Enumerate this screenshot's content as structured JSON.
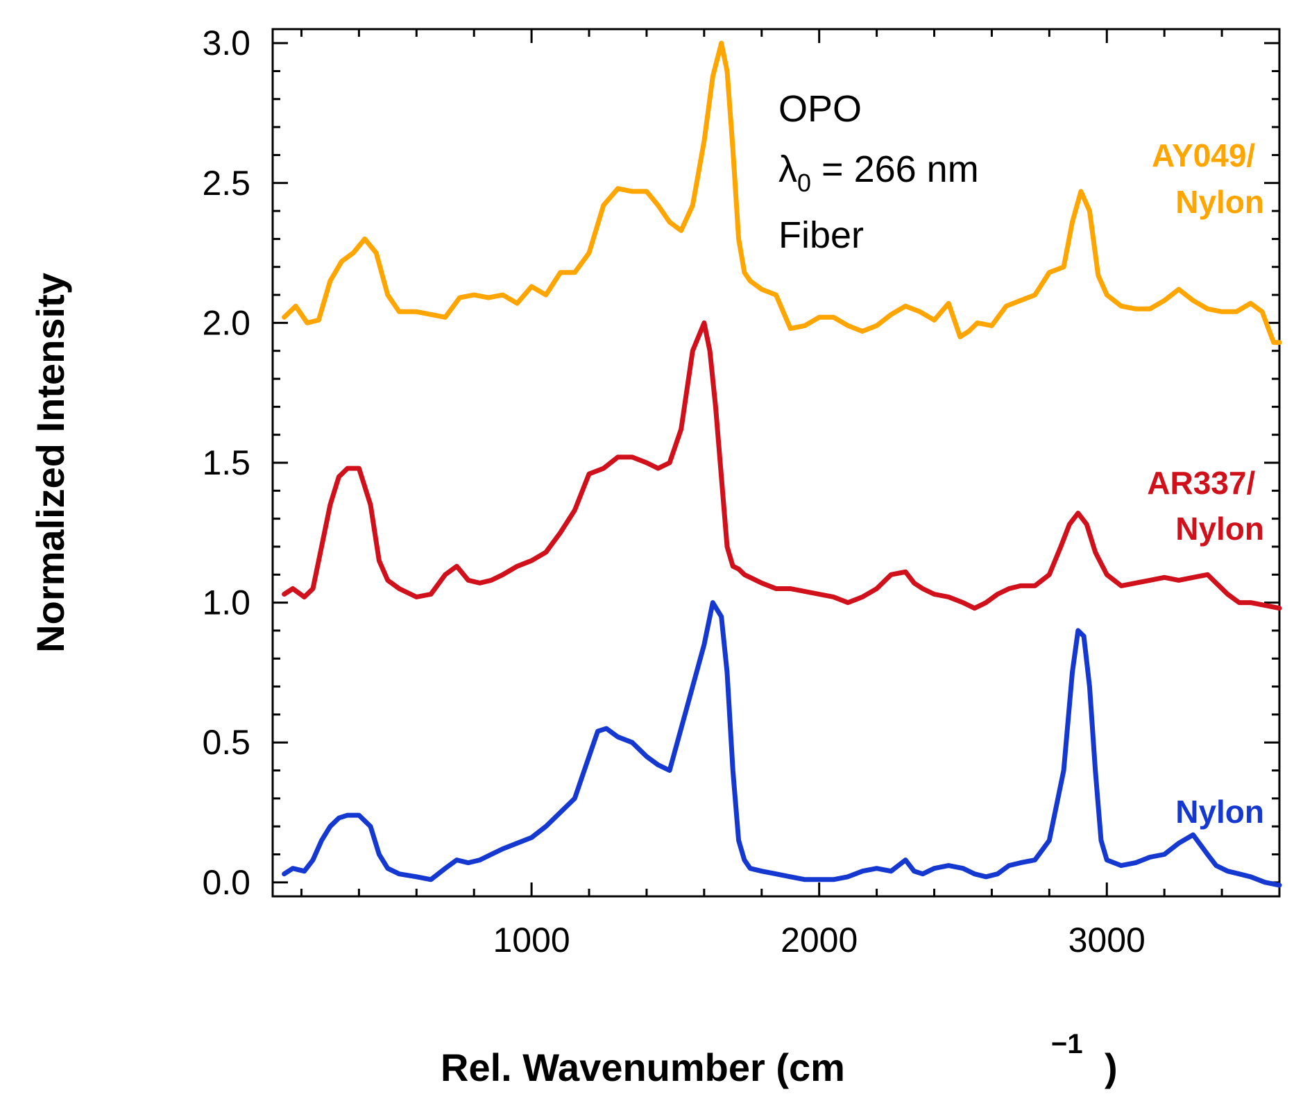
{
  "chart_data": {
    "type": "line",
    "title": "",
    "xlabel": "Rel. Wavenumber (cm",
    "xlabel_superscript": "−1",
    "xlabel_close": ")",
    "ylabel": "Normalized Intensity",
    "xlim": [
      100,
      3600
    ],
    "ylim": [
      -0.05,
      3.05
    ],
    "xticks": [
      1000,
      2000,
      3000
    ],
    "xtick_labels": [
      "1000",
      "2000",
      "3000"
    ],
    "yticks": [
      0.0,
      0.5,
      1.0,
      1.5,
      2.0,
      2.5,
      3.0
    ],
    "ytick_labels": [
      "0.0",
      "0.5",
      "1.0",
      "1.5",
      "2.0",
      "2.5",
      "3.0"
    ],
    "grid": false,
    "annotation": {
      "line1": "OPO",
      "line2_prefix": "λ",
      "line2_subscript": "0",
      "line2_suffix": " = 266 nm",
      "line3": "Fiber"
    },
    "series": [
      {
        "name": "AY049/Nylon",
        "label_lines": [
          "AY049/",
          "Nylon"
        ],
        "color": "#FFA500",
        "x": [
          140,
          180,
          220,
          260,
          300,
          340,
          380,
          420,
          460,
          500,
          540,
          600,
          650,
          700,
          750,
          800,
          850,
          900,
          950,
          1000,
          1050,
          1100,
          1150,
          1200,
          1250,
          1300,
          1350,
          1400,
          1440,
          1480,
          1520,
          1560,
          1600,
          1630,
          1660,
          1680,
          1700,
          1720,
          1740,
          1760,
          1800,
          1850,
          1900,
          1950,
          2000,
          2050,
          2100,
          2150,
          2200,
          2250,
          2300,
          2350,
          2400,
          2450,
          2490,
          2520,
          2550,
          2600,
          2650,
          2700,
          2750,
          2800,
          2850,
          2880,
          2910,
          2940,
          2970,
          3000,
          3050,
          3100,
          3150,
          3200,
          3250,
          3300,
          3350,
          3400,
          3450,
          3500,
          3540,
          3580,
          3600
        ],
        "y": [
          2.02,
          2.06,
          2.0,
          2.01,
          2.15,
          2.22,
          2.25,
          2.3,
          2.25,
          2.1,
          2.04,
          2.04,
          2.03,
          2.02,
          2.09,
          2.1,
          2.09,
          2.1,
          2.07,
          2.13,
          2.1,
          2.18,
          2.18,
          2.25,
          2.42,
          2.48,
          2.47,
          2.47,
          2.42,
          2.36,
          2.33,
          2.42,
          2.65,
          2.88,
          3.0,
          2.9,
          2.62,
          2.3,
          2.18,
          2.15,
          2.12,
          2.1,
          1.98,
          1.99,
          2.02,
          2.02,
          1.99,
          1.97,
          1.99,
          2.03,
          2.06,
          2.04,
          2.01,
          2.07,
          1.95,
          1.97,
          2.0,
          1.99,
          2.06,
          2.08,
          2.1,
          2.18,
          2.2,
          2.36,
          2.47,
          2.4,
          2.17,
          2.1,
          2.06,
          2.05,
          2.05,
          2.08,
          2.12,
          2.08,
          2.05,
          2.04,
          2.04,
          2.07,
          2.04,
          1.93,
          1.93
        ]
      },
      {
        "name": "AR337/Nylon",
        "label_lines": [
          "AR337/",
          "Nylon"
        ],
        "color": "#D0101A",
        "x": [
          140,
          170,
          210,
          240,
          270,
          300,
          330,
          360,
          400,
          440,
          470,
          500,
          540,
          600,
          650,
          700,
          740,
          780,
          820,
          860,
          900,
          950,
          1000,
          1050,
          1100,
          1150,
          1200,
          1250,
          1300,
          1350,
          1400,
          1440,
          1480,
          1520,
          1560,
          1600,
          1620,
          1640,
          1660,
          1680,
          1700,
          1720,
          1740,
          1760,
          1800,
          1850,
          1900,
          1950,
          2000,
          2050,
          2100,
          2150,
          2200,
          2250,
          2300,
          2330,
          2360,
          2400,
          2450,
          2500,
          2540,
          2580,
          2620,
          2660,
          2700,
          2750,
          2800,
          2840,
          2870,
          2900,
          2930,
          2960,
          3000,
          3050,
          3100,
          3150,
          3200,
          3250,
          3300,
          3350,
          3380,
          3420,
          3460,
          3500,
          3550,
          3600
        ],
        "y": [
          1.03,
          1.05,
          1.02,
          1.05,
          1.2,
          1.35,
          1.45,
          1.48,
          1.48,
          1.35,
          1.15,
          1.08,
          1.05,
          1.02,
          1.03,
          1.1,
          1.13,
          1.08,
          1.07,
          1.08,
          1.1,
          1.13,
          1.15,
          1.18,
          1.25,
          1.33,
          1.46,
          1.48,
          1.52,
          1.52,
          1.5,
          1.48,
          1.5,
          1.62,
          1.9,
          2.0,
          1.9,
          1.7,
          1.45,
          1.2,
          1.13,
          1.12,
          1.1,
          1.09,
          1.07,
          1.05,
          1.05,
          1.04,
          1.03,
          1.02,
          1.0,
          1.02,
          1.05,
          1.1,
          1.11,
          1.07,
          1.05,
          1.03,
          1.02,
          1.0,
          0.98,
          1.0,
          1.03,
          1.05,
          1.06,
          1.06,
          1.1,
          1.2,
          1.28,
          1.32,
          1.28,
          1.18,
          1.1,
          1.06,
          1.07,
          1.08,
          1.09,
          1.08,
          1.09,
          1.1,
          1.07,
          1.03,
          1.0,
          1.0,
          0.99,
          0.98
        ]
      },
      {
        "name": "Nylon",
        "label_lines": [
          "Nylon"
        ],
        "color": "#1438D0",
        "x": [
          140,
          170,
          210,
          240,
          270,
          300,
          330,
          360,
          400,
          440,
          470,
          500,
          540,
          600,
          650,
          700,
          740,
          780,
          820,
          860,
          900,
          950,
          1000,
          1050,
          1100,
          1150,
          1200,
          1230,
          1260,
          1300,
          1350,
          1400,
          1440,
          1480,
          1520,
          1560,
          1600,
          1630,
          1660,
          1680,
          1700,
          1720,
          1740,
          1760,
          1800,
          1850,
          1900,
          1950,
          2000,
          2050,
          2100,
          2150,
          2200,
          2250,
          2300,
          2330,
          2360,
          2400,
          2450,
          2500,
          2540,
          2580,
          2620,
          2660,
          2700,
          2750,
          2800,
          2850,
          2880,
          2900,
          2920,
          2940,
          2960,
          2980,
          3000,
          3050,
          3100,
          3150,
          3200,
          3250,
          3300,
          3350,
          3380,
          3420,
          3460,
          3500,
          3550,
          3600
        ],
        "y": [
          0.03,
          0.05,
          0.04,
          0.08,
          0.15,
          0.2,
          0.23,
          0.24,
          0.24,
          0.2,
          0.1,
          0.05,
          0.03,
          0.02,
          0.01,
          0.05,
          0.08,
          0.07,
          0.08,
          0.1,
          0.12,
          0.14,
          0.16,
          0.2,
          0.25,
          0.3,
          0.45,
          0.54,
          0.55,
          0.52,
          0.5,
          0.45,
          0.42,
          0.4,
          0.55,
          0.7,
          0.85,
          1.0,
          0.95,
          0.75,
          0.4,
          0.15,
          0.08,
          0.05,
          0.04,
          0.03,
          0.02,
          0.01,
          0.01,
          0.01,
          0.02,
          0.04,
          0.05,
          0.04,
          0.08,
          0.04,
          0.03,
          0.05,
          0.06,
          0.05,
          0.03,
          0.02,
          0.03,
          0.06,
          0.07,
          0.08,
          0.15,
          0.4,
          0.75,
          0.9,
          0.88,
          0.7,
          0.4,
          0.15,
          0.08,
          0.06,
          0.07,
          0.09,
          0.1,
          0.14,
          0.17,
          0.1,
          0.06,
          0.04,
          0.03,
          0.02,
          0.0,
          -0.01
        ]
      }
    ]
  }
}
